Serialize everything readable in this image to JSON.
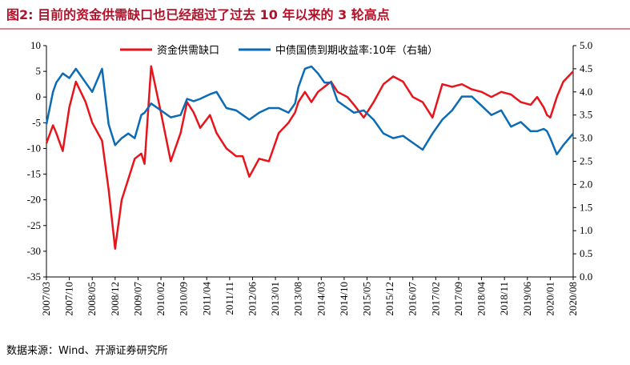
{
  "chart_data": {
    "type": "line",
    "title": "图2: 目前的资金供需缺口也已经超过了过去 10 年以来的 3 轮高点",
    "source": "数据来源：Wind、开源证券研究所",
    "xlim": [
      "2007/03",
      "2020/08"
    ],
    "xticks": [
      "2007/03",
      "2007/10",
      "2008/05",
      "2008/12",
      "2009/07",
      "2010/02",
      "2010/09",
      "2011/04",
      "2011/11",
      "2012/06",
      "2013/01",
      "2013/08",
      "2014/03",
      "2014/10",
      "2015/05",
      "2015/12",
      "2016/07",
      "2017/02",
      "2017/09",
      "2018/04",
      "2018/11",
      "2019/06",
      "2020/01",
      "2020/08"
    ],
    "x": [
      "2007/03",
      "2007/05",
      "2007/06",
      "2007/08",
      "2007/10",
      "2007/12",
      "2008/03",
      "2008/05",
      "2008/08",
      "2008/10",
      "2008/12",
      "2009/02",
      "2009/04",
      "2009/06",
      "2009/08",
      "2009/09",
      "2009/11",
      "2010/02",
      "2010/05",
      "2010/08",
      "2010/10",
      "2010/12",
      "2011/02",
      "2011/05",
      "2011/07",
      "2011/10",
      "2012/01",
      "2012/03",
      "2012/05",
      "2012/08",
      "2012/11",
      "2013/02",
      "2013/05",
      "2013/07",
      "2013/08",
      "2013/10",
      "2013/12",
      "2014/02",
      "2014/04",
      "2014/06",
      "2014/08",
      "2014/11",
      "2015/01",
      "2015/04",
      "2015/07",
      "2015/10",
      "2016/01",
      "2016/04",
      "2016/07",
      "2016/10",
      "2017/01",
      "2017/04",
      "2017/07",
      "2017/10",
      "2018/01",
      "2018/04",
      "2018/07",
      "2018/10",
      "2019/01",
      "2019/04",
      "2019/07",
      "2019/09",
      "2019/11",
      "2019/12",
      "2020/01",
      "2020/03",
      "2020/05",
      "2020/08"
    ],
    "series": [
      {
        "name": "资金供需缺口",
        "color": "#e8141c",
        "axis": "y",
        "values": [
          -9,
          -5.5,
          -7,
          -10.5,
          -2,
          3,
          -1,
          -5,
          -8.5,
          -18,
          -29.5,
          -20,
          -16,
          -12,
          -11,
          -13,
          6,
          -3,
          -12.5,
          -7,
          -1,
          -3,
          -6,
          -3.5,
          -7,
          -10,
          -11.5,
          -11.5,
          -15.5,
          -12,
          -12.5,
          -7,
          -5,
          -3,
          -1,
          1,
          -1,
          1,
          2,
          3,
          1,
          0,
          -1.5,
          -4,
          -1,
          2.5,
          4,
          3,
          0,
          -1,
          -4,
          2.5,
          2,
          2.5,
          1.5,
          1,
          0,
          1,
          0.5,
          -1,
          -1.5,
          0,
          -2,
          -3.5,
          -4,
          0,
          3,
          5
        ]
      },
      {
        "name": "中债国债到期收益率:10年（右轴）",
        "color": "#0b6bb5",
        "axis": "y2",
        "values": [
          3.3,
          4.0,
          4.2,
          4.4,
          4.3,
          4.5,
          4.2,
          4.0,
          4.5,
          3.3,
          2.85,
          3.0,
          3.1,
          3.0,
          3.5,
          3.55,
          3.75,
          3.6,
          3.45,
          3.5,
          3.85,
          3.8,
          3.85,
          3.95,
          4.0,
          3.65,
          3.6,
          3.5,
          3.4,
          3.55,
          3.65,
          3.65,
          3.55,
          3.75,
          4.1,
          4.5,
          4.55,
          4.4,
          4.2,
          4.2,
          3.8,
          3.65,
          3.55,
          3.6,
          3.4,
          3.1,
          3.0,
          3.05,
          2.9,
          2.75,
          3.1,
          3.4,
          3.6,
          3.9,
          3.9,
          3.7,
          3.5,
          3.6,
          3.25,
          3.35,
          3.15,
          3.15,
          3.2,
          3.15,
          3.0,
          2.65,
          2.85,
          3.1
        ]
      }
    ],
    "ylim": [
      -35,
      10
    ],
    "yticks": [
      -35,
      -30,
      -25,
      -20,
      -15,
      -10,
      -5,
      0,
      5,
      10
    ],
    "y2lim": [
      0,
      5
    ],
    "y2ticks": [
      {
        "value": 0,
        "label": "0.0"
      },
      {
        "value": 0.5,
        "label": "0.5"
      },
      {
        "value": 1,
        "label": "1.0"
      },
      {
        "value": 1.5,
        "label": "1.5"
      },
      {
        "value": 2,
        "label": "2.0"
      },
      {
        "value": 2.5,
        "label": "2.5"
      },
      {
        "value": 3,
        "label": "3.0"
      },
      {
        "value": 3.5,
        "label": "3.5"
      },
      {
        "value": 4,
        "label": "4.0"
      },
      {
        "value": 4.5,
        "label": "4.5"
      },
      {
        "value": 5,
        "label": "5.0"
      }
    ],
    "legend": "top"
  }
}
